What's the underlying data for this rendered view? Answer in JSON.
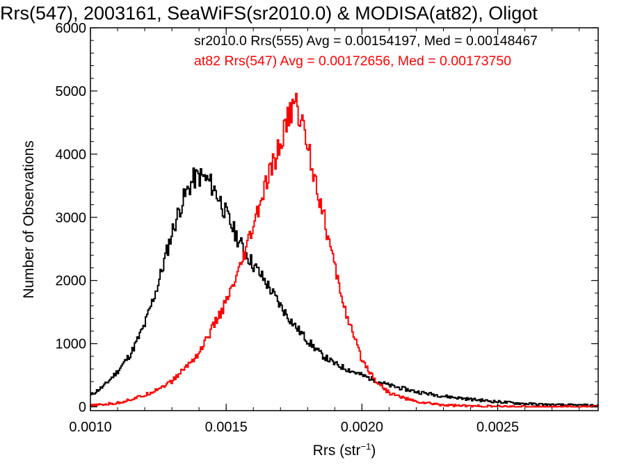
{
  "chart_data": {
    "type": "line",
    "title": "Rrs(547), 2003161, SeaWiFS(sr2010.0) & MODISA(at82), Oligot",
    "xlabel_main": "Rrs (str",
    "xlabel_sup": "−1",
    "xlabel_close": ")",
    "ylabel": "Number of Observations",
    "xlim": [
      0.001,
      0.00287
    ],
    "ylim": [
      -60,
      6000
    ],
    "x_ticks": [
      0.001,
      0.0015,
      0.002,
      0.0025
    ],
    "x_tick_labels": [
      "0.0010",
      "0.0015",
      "0.0020",
      "0.0025"
    ],
    "y_ticks": [
      0,
      1000,
      2000,
      3000,
      4000,
      5000,
      6000
    ],
    "y_tick_labels": [
      "0",
      "1000",
      "2000",
      "3000",
      "4000",
      "5000",
      "6000"
    ],
    "grid": false,
    "legend_placement": "top-right",
    "series": [
      {
        "name": "sr2010.0 Rrs(555) Avg = 0.00154197, Med = 0.00148467",
        "color": "#000000",
        "x": [
          0.001,
          0.00105,
          0.0011,
          0.00115,
          0.0012,
          0.00125,
          0.0013,
          0.00133,
          0.00136,
          0.00138,
          0.0014,
          0.00142,
          0.00144,
          0.00146,
          0.00148,
          0.0015,
          0.00155,
          0.0016,
          0.00165,
          0.0017,
          0.00175,
          0.0018,
          0.00185,
          0.0019,
          0.002,
          0.0021,
          0.0022,
          0.0023,
          0.0024,
          0.0025,
          0.0026,
          0.0027,
          0.00287
        ],
        "y": [
          180,
          330,
          560,
          850,
          1300,
          1950,
          2750,
          3150,
          3450,
          3600,
          3650,
          3620,
          3550,
          3420,
          3250,
          3050,
          2600,
          2250,
          1950,
          1600,
          1300,
          1050,
          830,
          680,
          500,
          340,
          240,
          170,
          120,
          80,
          50,
          30,
          20
        ]
      },
      {
        "name": "at82 Rrs(547) Avg = 0.00172656, Med = 0.00173750",
        "color": "#ff0000",
        "x": [
          0.001,
          0.0011,
          0.0012,
          0.0013,
          0.0014,
          0.0015,
          0.00155,
          0.0016,
          0.00165,
          0.0017,
          0.00172,
          0.00174,
          0.00175,
          0.00176,
          0.00178,
          0.0018,
          0.00185,
          0.0019,
          0.00195,
          0.002,
          0.00205,
          0.0021,
          0.0022,
          0.0023,
          0.0024,
          0.0025,
          0.0026,
          0.00287
        ],
        "y": [
          15,
          60,
          180,
          400,
          850,
          1650,
          2150,
          2850,
          3550,
          4150,
          4450,
          4700,
          4800,
          4750,
          4500,
          4150,
          3200,
          2200,
          1350,
          750,
          420,
          220,
          80,
          30,
          12,
          5,
          2,
          0
        ]
      }
    ]
  }
}
